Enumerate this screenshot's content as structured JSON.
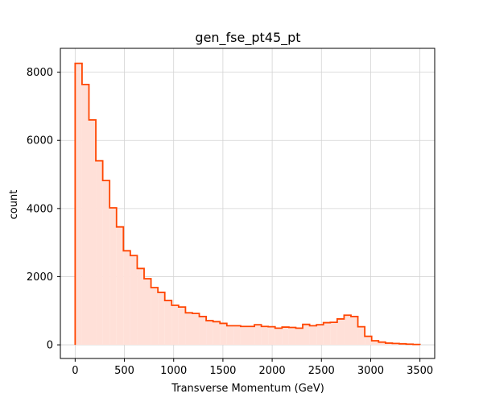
{
  "chart_data": {
    "type": "histogram",
    "title": "gen_fse_pt45_pt",
    "xlabel": "Transverse Momentum (GeV)",
    "ylabel": "count",
    "xlim": [
      -150,
      3650
    ],
    "ylim": [
      -400,
      8700
    ],
    "grid": true,
    "legend": "none",
    "x_ticks": [
      0,
      500,
      1000,
      1500,
      2000,
      2500,
      3000,
      3500
    ],
    "y_ticks": [
      0,
      2000,
      4000,
      6000,
      8000
    ],
    "bin_edges": [
      0,
      70,
      140,
      210,
      280,
      350,
      420,
      490,
      560,
      630,
      700,
      770,
      840,
      910,
      980,
      1050,
      1120,
      1190,
      1260,
      1330,
      1400,
      1470,
      1540,
      1610,
      1680,
      1750,
      1820,
      1890,
      1960,
      2030,
      2100,
      2170,
      2240,
      2310,
      2380,
      2450,
      2520,
      2590,
      2660,
      2730,
      2800,
      2870,
      2940,
      3010,
      3080,
      3150,
      3220,
      3290,
      3360,
      3430,
      3500
    ],
    "counts": [
      8260,
      7640,
      6600,
      5400,
      4820,
      4020,
      3460,
      2760,
      2620,
      2240,
      1940,
      1680,
      1540,
      1300,
      1160,
      1110,
      940,
      920,
      830,
      710,
      680,
      630,
      560,
      560,
      540,
      540,
      590,
      540,
      530,
      490,
      520,
      510,
      490,
      600,
      560,
      590,
      650,
      660,
      760,
      870,
      830,
      530,
      250,
      120,
      80,
      50,
      40,
      30,
      20,
      10
    ],
    "colors": {
      "line": "#ff4500",
      "fill": "#ffe0d8",
      "grid": "#d3d3d3",
      "axis": "#000000"
    }
  }
}
